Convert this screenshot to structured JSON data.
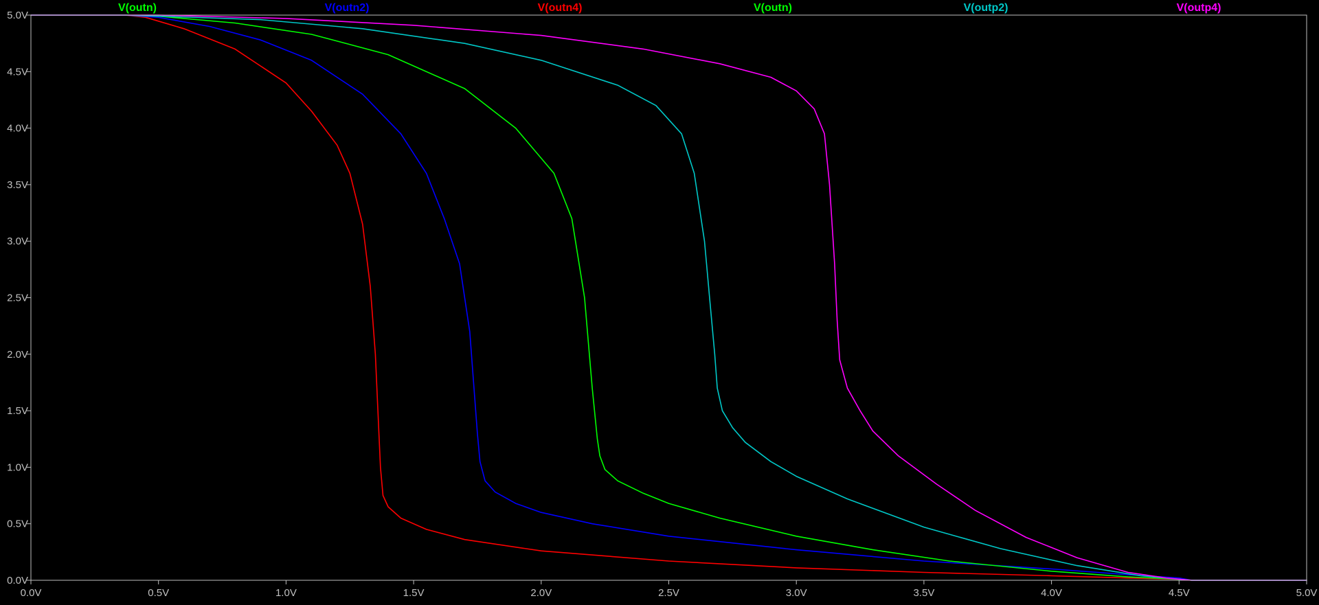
{
  "chart_data": {
    "type": "line",
    "xlim": [
      0,
      5
    ],
    "ylim": [
      0,
      5
    ],
    "x_ticks": [
      "0.0V",
      "0.5V",
      "1.0V",
      "1.5V",
      "2.0V",
      "2.5V",
      "3.0V",
      "3.5V",
      "4.0V",
      "4.5V",
      "5.0V"
    ],
    "y_ticks": [
      "0.0V",
      "0.5V",
      "1.0V",
      "1.5V",
      "2.0V",
      "2.5V",
      "3.0V",
      "3.5V",
      "4.0V",
      "4.5V",
      "5.0V"
    ],
    "grid": false,
    "legend_position": "top",
    "background": "#000000",
    "axis_color": "#c0c0c0",
    "series": [
      {
        "name": "V(outn4)",
        "color": "#ff0000",
        "x": [
          0,
          0.37,
          0.45,
          0.6,
          0.8,
          1.0,
          1.1,
          1.2,
          1.25,
          1.3,
          1.33,
          1.35,
          1.36,
          1.37,
          1.38,
          1.4,
          1.45,
          1.55,
          1.7,
          2.0,
          2.5,
          3.0,
          3.5,
          4.0,
          4.3,
          4.5,
          4.55,
          5.0
        ],
        "y": [
          5,
          5,
          4.98,
          4.88,
          4.7,
          4.4,
          4.15,
          3.85,
          3.6,
          3.15,
          2.6,
          2.0,
          1.5,
          1.0,
          0.75,
          0.65,
          0.55,
          0.45,
          0.36,
          0.26,
          0.17,
          0.11,
          0.07,
          0.04,
          0.02,
          0.01,
          0,
          0
        ]
      },
      {
        "name": "V(outn2)",
        "color": "#0000ff",
        "x": [
          0,
          0.37,
          0.5,
          0.7,
          0.9,
          1.1,
          1.3,
          1.45,
          1.55,
          1.62,
          1.68,
          1.72,
          1.74,
          1.75,
          1.76,
          1.78,
          1.82,
          1.9,
          2.0,
          2.2,
          2.5,
          3.0,
          3.5,
          4.0,
          4.3,
          4.5,
          4.55,
          5.0
        ],
        "y": [
          5,
          5,
          4.98,
          4.9,
          4.78,
          4.6,
          4.3,
          3.95,
          3.6,
          3.2,
          2.8,
          2.2,
          1.6,
          1.3,
          1.05,
          0.88,
          0.78,
          0.68,
          0.6,
          0.5,
          0.39,
          0.27,
          0.17,
          0.1,
          0.05,
          0.02,
          0,
          0
        ]
      },
      {
        "name": "V(outn)",
        "color": "#00ff00",
        "x": [
          0,
          0.37,
          0.5,
          0.8,
          1.1,
          1.4,
          1.7,
          1.9,
          2.05,
          2.12,
          2.17,
          2.2,
          2.22,
          2.23,
          2.25,
          2.3,
          2.4,
          2.5,
          2.7,
          3.0,
          3.3,
          3.6,
          4.0,
          4.3,
          4.5,
          4.55,
          5.0
        ],
        "y": [
          5,
          5,
          4.99,
          4.93,
          4.83,
          4.65,
          4.35,
          4.0,
          3.6,
          3.2,
          2.5,
          1.7,
          1.25,
          1.1,
          0.98,
          0.88,
          0.77,
          0.68,
          0.55,
          0.39,
          0.27,
          0.17,
          0.08,
          0.03,
          0.01,
          0,
          0
        ]
      },
      {
        "name": "V(outp2)",
        "color": "#00c8c8",
        "x": [
          0,
          0.37,
          0.5,
          0.9,
          1.3,
          1.7,
          2.0,
          2.3,
          2.45,
          2.55,
          2.6,
          2.64,
          2.66,
          2.68,
          2.69,
          2.71,
          2.75,
          2.8,
          2.9,
          3.0,
          3.2,
          3.5,
          3.8,
          4.1,
          4.35,
          4.5,
          4.55,
          5.0
        ],
        "y": [
          5,
          5,
          4.99,
          4.96,
          4.88,
          4.75,
          4.6,
          4.38,
          4.2,
          3.95,
          3.6,
          3.0,
          2.5,
          2.0,
          1.7,
          1.5,
          1.35,
          1.22,
          1.05,
          0.92,
          0.72,
          0.47,
          0.28,
          0.13,
          0.04,
          0.01,
          0,
          0
        ]
      },
      {
        "name": "V(outp4)",
        "color": "#ff00ff",
        "x": [
          0,
          0.37,
          0.5,
          1.0,
          1.5,
          2.0,
          2.4,
          2.7,
          2.9,
          3.0,
          3.07,
          3.11,
          3.13,
          3.15,
          3.16,
          3.17,
          3.2,
          3.25,
          3.3,
          3.4,
          3.55,
          3.7,
          3.9,
          4.1,
          4.3,
          4.45,
          4.55,
          5.0
        ],
        "y": [
          5,
          5,
          5.0,
          4.97,
          4.91,
          4.82,
          4.7,
          4.57,
          4.45,
          4.33,
          4.17,
          3.95,
          3.5,
          2.8,
          2.3,
          1.95,
          1.7,
          1.5,
          1.32,
          1.1,
          0.85,
          0.62,
          0.38,
          0.2,
          0.07,
          0.02,
          0,
          0
        ]
      }
    ],
    "legend": [
      {
        "label": "V(outn)",
        "color": "#00ff00"
      },
      {
        "label": "V(outn2)",
        "color": "#0000ff"
      },
      {
        "label": "V(outn4)",
        "color": "#ff0000"
      },
      {
        "label": "V(outn)",
        "color": "#00ff00"
      },
      {
        "label": "V(outp2)",
        "color": "#00c8c8"
      },
      {
        "label": "V(outp4)",
        "color": "#ff00ff"
      }
    ]
  }
}
